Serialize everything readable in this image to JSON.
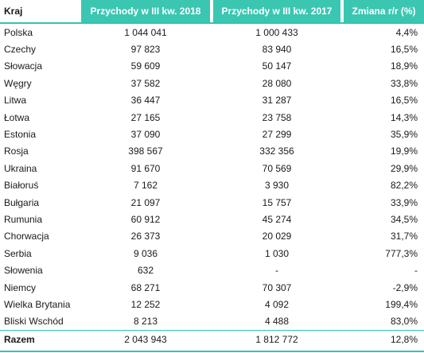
{
  "table": {
    "headers": {
      "country": "Kraj",
      "revenue_2018": "Przychody w  III kw. 2018",
      "revenue_2017": "Przychody w III kw. 2017",
      "change": "Zmiana r/r (%)"
    },
    "rows": [
      {
        "country": "Polska",
        "v2018": "1 044 041",
        "v2017": "1 000 433",
        "change": "4,4%"
      },
      {
        "country": "Czechy",
        "v2018": "97 823",
        "v2017": "83 940",
        "change": "16,5%"
      },
      {
        "country": "Słowacja",
        "v2018": "59 609",
        "v2017": "50 147",
        "change": "18,9%"
      },
      {
        "country": "Węgry",
        "v2018": "37 582",
        "v2017": "28 080",
        "change": "33,8%"
      },
      {
        "country": "Litwa",
        "v2018": "36 447",
        "v2017": "31 287",
        "change": "16,5%"
      },
      {
        "country": "Łotwa",
        "v2018": "27 165",
        "v2017": "23 758",
        "change": "14,3%"
      },
      {
        "country": "Estonia",
        "v2018": "37 090",
        "v2017": "27 299",
        "change": "35,9%"
      },
      {
        "country": "Rosja",
        "v2018": "398 567",
        "v2017": "332 356",
        "change": "19,9%"
      },
      {
        "country": "Ukraina",
        "v2018": "91 670",
        "v2017": "70 569",
        "change": "29,9%"
      },
      {
        "country": "Białoruś",
        "v2018": "7 162",
        "v2017": "3 930",
        "change": "82,2%"
      },
      {
        "country": "Bułgaria",
        "v2018": "21 097",
        "v2017": "15 757",
        "change": "33,9%"
      },
      {
        "country": "Rumunia",
        "v2018": "60 912",
        "v2017": "45 274",
        "change": "34,5%"
      },
      {
        "country": "Chorwacja",
        "v2018": "26 373",
        "v2017": "20 029",
        "change": "31,7%"
      },
      {
        "country": "Serbia",
        "v2018": "9 036",
        "v2017": "1 030",
        "change": "777,3%"
      },
      {
        "country": "Słowenia",
        "v2018": "632",
        "v2017": "-",
        "change": "-"
      },
      {
        "country": "Niemcy",
        "v2018": "68 271",
        "v2017": "70 307",
        "change": "-2,9%"
      },
      {
        "country": "Wielka Brytania",
        "v2018": "12 252",
        "v2017": "4 092",
        "change": "199,4%"
      },
      {
        "country": "Bliski Wschód",
        "v2018": "8 213",
        "v2017": "4 488",
        "change": "83,0%"
      }
    ],
    "total": {
      "country": "Razem",
      "v2018": "2 043 943",
      "v2017": "1 812 772",
      "change": "12,8%"
    }
  },
  "colors": {
    "header_fill": "#3bc6b2",
    "accent_line": "#2cc7b1",
    "text": "#1a1a1a"
  }
}
